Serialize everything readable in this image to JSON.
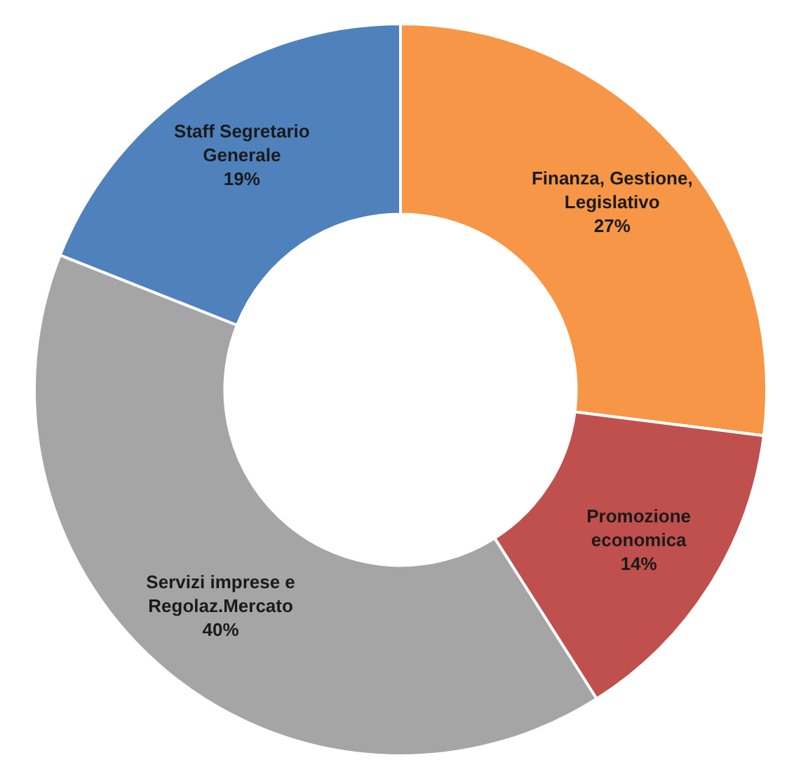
{
  "chart_data": {
    "type": "donut",
    "categories": [
      "Finanza, Gestione, Legislativo",
      "Promozione economica",
      "Servizi imprese e Regolaz.Mercato",
      "Staff Segretario Generale"
    ],
    "values": [
      27,
      14,
      40,
      19
    ],
    "colors": [
      "#f79646",
      "#c0504d",
      "#a5a5a5",
      "#4f81bd"
    ],
    "value_labels": [
      "27%",
      "14%",
      "40%",
      "19%"
    ],
    "legend": false
  }
}
